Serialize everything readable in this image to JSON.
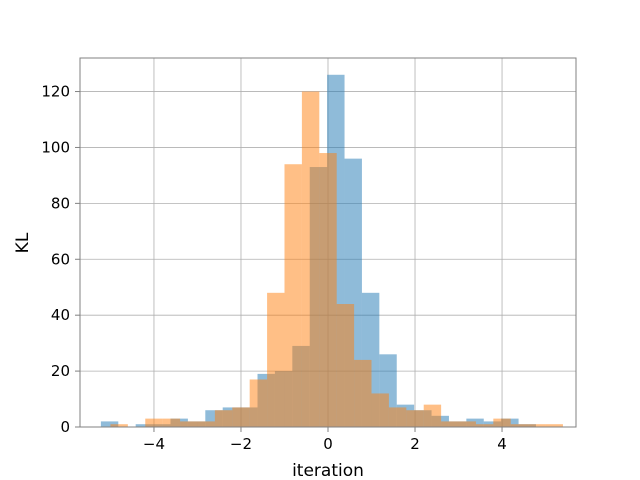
{
  "chart_data": {
    "type": "bar",
    "subtype": "overlapping-histogram",
    "title": "",
    "xlabel": "iteration",
    "ylabel": "KL",
    "xlim": [
      -5.7,
      5.7
    ],
    "ylim": [
      0,
      132
    ],
    "xticks": [
      -4,
      -2,
      0,
      2,
      4
    ],
    "xtick_labels": [
      "−4",
      "−2",
      "0",
      "2",
      "4"
    ],
    "yticks": [
      0,
      20,
      40,
      60,
      80,
      100,
      120
    ],
    "ytick_labels": [
      "0",
      "20",
      "40",
      "60",
      "80",
      "100",
      "120"
    ],
    "grid": true,
    "legend": "none",
    "series": [
      {
        "color": "#1f77b4",
        "alpha": 0.5,
        "bin_edges": [
          -5.22,
          -4.82,
          -4.42,
          -4.02,
          -3.62,
          -3.22,
          -2.82,
          -2.42,
          -2.02,
          -1.62,
          -1.22,
          -0.82,
          -0.42,
          -0.02,
          0.38,
          0.78,
          1.18,
          1.58,
          1.98,
          2.38,
          2.78,
          3.18,
          3.58,
          3.98,
          4.38,
          4.78
        ],
        "counts": [
          2,
          0,
          1,
          1,
          3,
          2,
          6,
          7,
          7,
          19,
          20,
          29,
          93,
          126,
          96,
          48,
          26,
          8,
          6,
          4,
          2,
          3,
          2,
          3,
          1
        ]
      },
      {
        "color": "#ff7f0e",
        "alpha": 0.5,
        "bin_edges": [
          -5.0,
          -4.6,
          -4.2,
          -3.8,
          -3.4,
          -3.0,
          -2.6,
          -2.2,
          -1.8,
          -1.4,
          -1.0,
          -0.6,
          -0.2,
          0.2,
          0.6,
          1.0,
          1.4,
          1.8,
          2.2,
          2.6,
          3.0,
          3.4,
          3.8,
          4.2,
          4.6,
          5.0,
          5.4
        ],
        "counts": [
          1,
          0,
          3,
          3,
          2,
          2,
          6,
          7,
          17,
          48,
          94,
          120,
          98,
          44,
          24,
          12,
          7,
          6,
          8,
          2,
          2,
          1,
          3,
          1,
          1,
          1
        ]
      }
    ]
  }
}
